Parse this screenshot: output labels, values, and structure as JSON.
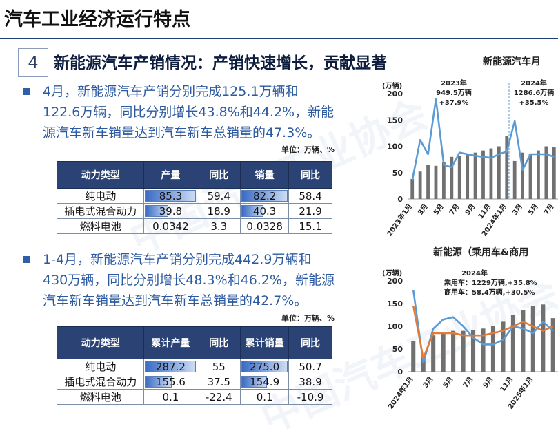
{
  "page_title": "汽车工业经济运行特点",
  "section": {
    "number": "4",
    "title": "新能源汽车产销情况：产销快速增长，贡献显著"
  },
  "watermark": "中国汽车工业协会",
  "block1": {
    "lines": [
      "4月，新能源汽车产销分别完成125.1万辆和",
      "122.6万辆，同比分别增长43.8%和44.2%，新能",
      "源汽车新车销量达到汽车新车总销量的47.3%。"
    ],
    "unit": "单位：万辆、%",
    "headers": [
      "动力类型",
      "产量",
      "同比",
      "销量",
      "同比"
    ],
    "rows": [
      {
        "type": "纯电动",
        "prod": "85.3",
        "prod_yoy": "59.4",
        "sales": "82.2",
        "sales_yoy": "58.4",
        "prod_frac": 1.0,
        "sales_frac": 1.0
      },
      {
        "type": "插电式混合动力",
        "prod": "39.8",
        "prod_yoy": "18.9",
        "sales": "40.3",
        "sales_yoy": "21.9",
        "prod_frac": 0.47,
        "sales_frac": 0.49
      },
      {
        "type": "燃料电池",
        "prod": "0.0342",
        "prod_yoy": "3.3",
        "sales": "0.0328",
        "sales_yoy": "15.1",
        "prod_frac": 0,
        "sales_frac": 0
      }
    ]
  },
  "block2": {
    "lines": [
      "1-4月，新能源汽车产销分别完成442.9万辆和",
      "430万辆，同比分别增长48.3%和46.2%，新能源",
      "汽车新车销量达到汽车新车总销量的42.7%。"
    ],
    "unit": "单位：万辆、%",
    "headers": [
      "动力类型",
      "累计产量",
      "同比",
      "累计销量",
      "同比"
    ],
    "rows": [
      {
        "type": "纯电动",
        "prod": "287.2",
        "prod_yoy": "55",
        "sales": "275.0",
        "sales_yoy": "50.7",
        "prod_frac": 1.0,
        "sales_frac": 1.0
      },
      {
        "type": "插电式混合动力",
        "prod": "155.6",
        "prod_yoy": "37.5",
        "sales": "154.9",
        "sales_yoy": "38.9",
        "prod_frac": 0.54,
        "sales_frac": 0.56
      },
      {
        "type": "燃料电池",
        "prod": "0.1",
        "prod_yoy": "-22.4",
        "sales": "0.1",
        "sales_yoy": "-10.9",
        "prod_frac": 0,
        "sales_frac": 0
      }
    ]
  },
  "chart_data": [
    {
      "type": "bar",
      "title": "新能源汽车月",
      "unit": "(万辆)",
      "ylim": [
        0,
        200
      ],
      "yticks": [
        "0",
        "50",
        "100",
        "150",
        "200"
      ],
      "x_labels": [
        "2023年1月",
        "3月",
        "5月",
        "7月",
        "9月",
        "11月",
        "2024年1月",
        "3月",
        "5月",
        "7月"
      ],
      "annotations": [
        {
          "year": "2023年",
          "total": "949.5万辆",
          "growth": "+37.9%"
        },
        {
          "year": "2024年",
          "total": "1286.6万辆",
          "growth": "+35.5%"
        }
      ],
      "series": [
        {
          "kind": "bar",
          "values": [
            38,
            52,
            65,
            63,
            70,
            80,
            82,
            85,
            88,
            92,
            96,
            100,
            120,
            72,
            88,
            85,
            92,
            100,
            98
          ]
        },
        {
          "kind": "line",
          "values": [
            35,
            112,
            85,
            190,
            65,
            60,
            88,
            85,
            82,
            80,
            78,
            85,
            90,
            148,
            55,
            85,
            85,
            85,
            80
          ]
        }
      ]
    },
    {
      "type": "bar",
      "title": "新能源（乘用车&商用",
      "unit": "(万辆)",
      "ylim": [
        0,
        200
      ],
      "yticks": [
        "0",
        "50",
        "100",
        "150",
        "200"
      ],
      "x_labels": [
        "2024年1月",
        "3月",
        "5月",
        "7月",
        "9月",
        "11月",
        "2025年1月"
      ],
      "annotations": [
        {
          "year": "2024年",
          "passenger": "乘用车：1229万辆,+35.8%",
          "commercial": "商用车：58.4万辆,+30.5%"
        }
      ],
      "series": [
        {
          "kind": "bar",
          "values": [
            68,
            32,
            80,
            85,
            90,
            90,
            92,
            95,
            100,
            110,
            125,
            135,
            145,
            148,
            118
          ]
        },
        {
          "kind": "line",
          "values": [
            180,
            20,
            95,
            115,
            120,
            100,
            75,
            60,
            60,
            70,
            100,
            95,
            85,
            110,
            90
          ]
        },
        {
          "kind": "line",
          "values": [
            145,
            30,
            85,
            85,
            85,
            80,
            80,
            80,
            85,
            90,
            100,
            110,
            100,
            90,
            100
          ]
        }
      ]
    }
  ]
}
